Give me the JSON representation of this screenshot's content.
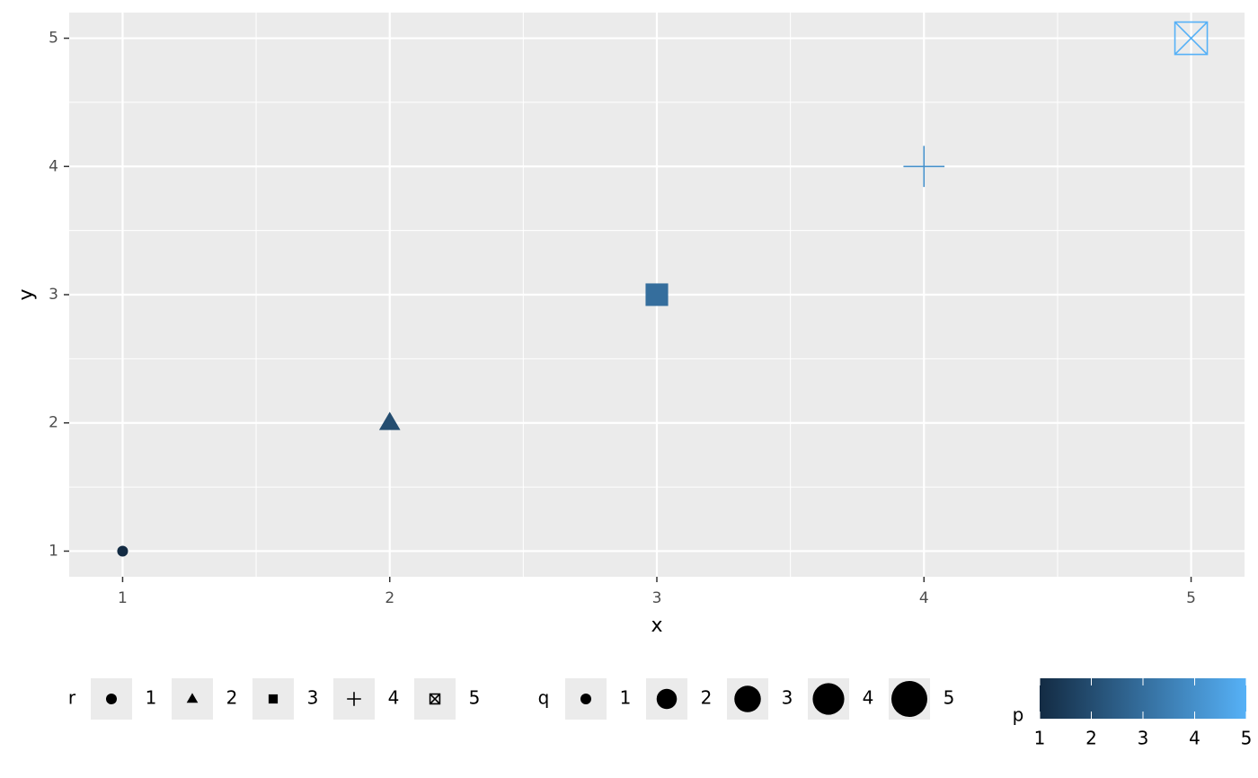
{
  "chart_data": {
    "type": "scatter",
    "x_label": "x",
    "y_label": "y",
    "x": [
      1,
      2,
      3,
      4,
      5
    ],
    "y": [
      1,
      2,
      3,
      4,
      5
    ],
    "color_values": [
      1,
      2,
      3,
      4,
      5
    ],
    "size_values": [
      1,
      2,
      3,
      4,
      5
    ],
    "shape_values": [
      1,
      2,
      3,
      4,
      5
    ],
    "xlim": [
      0.8,
      5.2
    ],
    "ylim": [
      0.8,
      5.2
    ],
    "xticks": [
      1,
      2,
      3,
      4,
      5
    ],
    "yticks": [
      1,
      2,
      3,
      4,
      5
    ],
    "grid": true,
    "legend_position": "bottom",
    "shape_legend": {
      "title": "r",
      "labels": [
        1,
        2,
        3,
        4,
        5
      ],
      "shapes": [
        "circle",
        "triangle",
        "square",
        "plus",
        "boxcross"
      ]
    },
    "size_legend": {
      "title": "q",
      "labels": [
        1,
        2,
        3,
        4,
        5
      ]
    },
    "color_legend": {
      "title": "p",
      "lim": [
        1,
        5
      ],
      "ticks": [
        1,
        2,
        3,
        4,
        5
      ],
      "low": "#132B43",
      "high": "#56B1F7"
    }
  }
}
